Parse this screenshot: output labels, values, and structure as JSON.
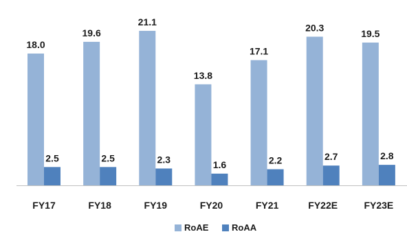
{
  "chart_data": {
    "type": "bar",
    "categories": [
      "FY17",
      "FY18",
      "FY19",
      "FY20",
      "FY21",
      "FY22E",
      "FY23E"
    ],
    "series": [
      {
        "name": "RoAE",
        "values": [
          18.0,
          19.6,
          21.1,
          13.8,
          17.1,
          20.3,
          19.5
        ],
        "labels": [
          "18.0",
          "19.6",
          "21.1",
          "13.8",
          "17.1",
          "20.3",
          "19.5"
        ],
        "color": "#95b3d7"
      },
      {
        "name": "RoAA",
        "values": [
          2.5,
          2.5,
          2.3,
          1.6,
          2.2,
          2.7,
          2.8
        ],
        "labels": [
          "2.5",
          "2.5",
          "2.3",
          "1.6",
          "2.2",
          "2.7",
          "2.8"
        ],
        "color": "#4f81bd"
      }
    ],
    "ylim": [
      0,
      22.5
    ],
    "grid": false,
    "legend_position": "bottom-center",
    "title": "",
    "xlabel": "",
    "ylabel": ""
  }
}
